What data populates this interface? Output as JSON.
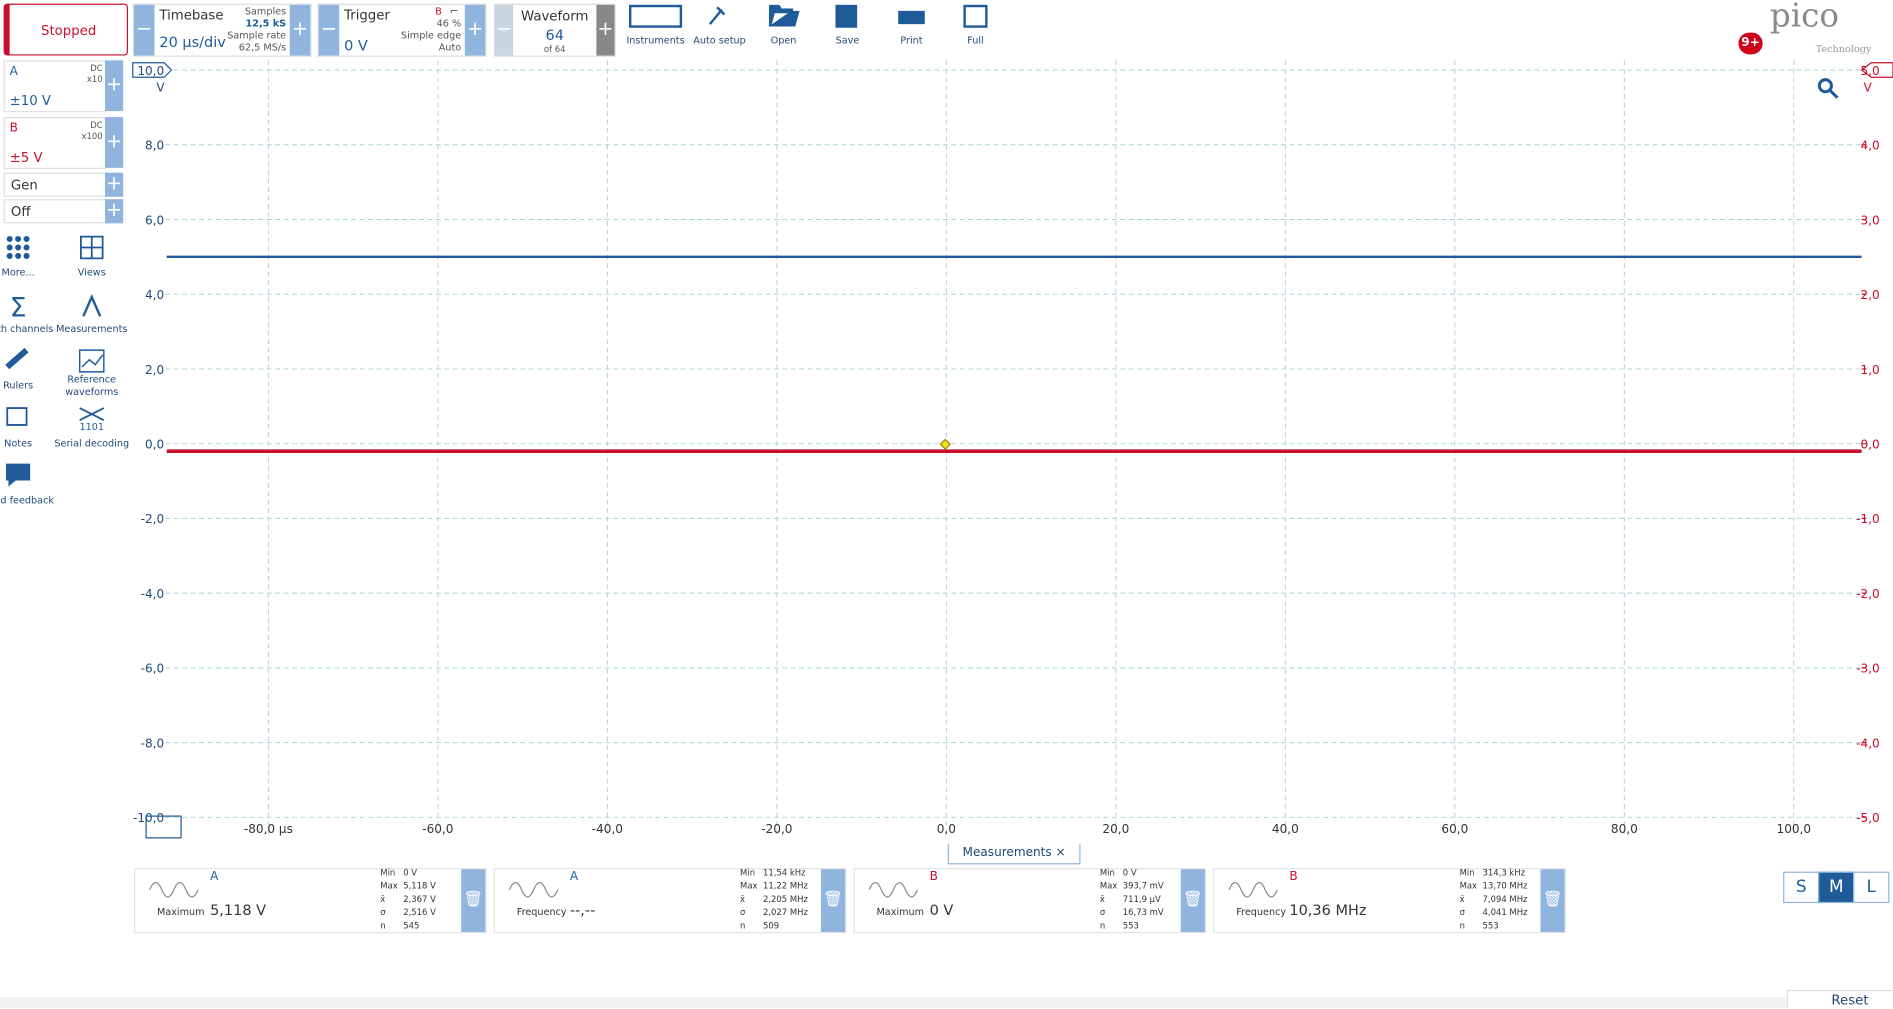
{
  "toolbar": {
    "run_state": "Stopped",
    "timebase": {
      "label": "Timebase",
      "value": "20 µs/div",
      "samples_label": "Samples",
      "samples": "12,5 kS",
      "sample_rate_label": "Sample rate",
      "sample_rate": "62,5 MS/s"
    },
    "trigger": {
      "label": "Trigger",
      "level": "0 V",
      "channel": "B",
      "percent": "46 %",
      "type": "Simple edge",
      "mode": "Auto"
    },
    "waveform": {
      "label": "Waveform",
      "value": "64",
      "of": "of 64"
    },
    "buttons": [
      "Instruments",
      "Auto setup",
      "Open",
      "Save",
      "Print",
      "Full"
    ],
    "notifications": "9+",
    "logo": "pico",
    "logo_sub": "Technology"
  },
  "channels": [
    {
      "name": "A",
      "coupling": "DC",
      "probe": "x10",
      "range": "±10 V"
    },
    {
      "name": "B",
      "coupling": "DC",
      "probe": "x100",
      "range": "±5 V"
    }
  ],
  "generator": {
    "name": "Gen",
    "state": "Off"
  },
  "tools": [
    "More...",
    "Views",
    "Math channels",
    "Measurements",
    "Rulers",
    "Reference waveforms",
    "Notes",
    "Serial decoding",
    "Send feedback"
  ],
  "chart_data": {
    "type": "line",
    "ylabel": "V",
    "y2label": "V",
    "xlim": [
      -96,
      108
    ],
    "ylim": [
      -10,
      10
    ],
    "y2lim": [
      -5,
      5
    ],
    "xticks": [
      {
        "value": -80,
        "label": "-80,0 µs"
      },
      {
        "value": -60,
        "label": "-60,0"
      },
      {
        "value": -40,
        "label": "-40,0"
      },
      {
        "value": -20,
        "label": "-20,0"
      },
      {
        "value": 0,
        "label": "0,0"
      },
      {
        "value": 20,
        "label": "20,0"
      },
      {
        "value": 40,
        "label": "40,0"
      },
      {
        "value": 60,
        "label": "60,0"
      },
      {
        "value": 80,
        "label": "80,0"
      },
      {
        "value": 100,
        "label": "100,0"
      }
    ],
    "yticks": [
      {
        "value": 10,
        "label": "10,0"
      },
      {
        "value": 8,
        "label": "8,0"
      },
      {
        "value": 6,
        "label": "6,0"
      },
      {
        "value": 4,
        "label": "4,0"
      },
      {
        "value": 2,
        "label": "2,0"
      },
      {
        "value": 0,
        "label": "0,0"
      },
      {
        "value": -2,
        "label": "-2,0"
      },
      {
        "value": -4,
        "label": "-4,0"
      },
      {
        "value": -6,
        "label": "-6,0"
      },
      {
        "value": -8,
        "label": "-8,0"
      },
      {
        "value": -10,
        "label": "-10,0"
      }
    ],
    "y2ticks": [
      {
        "value": 5,
        "label": "5,0"
      },
      {
        "value": 4,
        "label": "4,0"
      },
      {
        "value": 3,
        "label": "3,0"
      },
      {
        "value": 2,
        "label": "2,0"
      },
      {
        "value": 1,
        "label": "1,0"
      },
      {
        "value": 0,
        "label": "0,0"
      },
      {
        "value": -1,
        "label": "-1,0"
      },
      {
        "value": -2,
        "label": "-2,0"
      },
      {
        "value": -3,
        "label": "-3,0"
      },
      {
        "value": -4,
        "label": "-4,0"
      },
      {
        "value": -5,
        "label": "-5,0"
      }
    ],
    "grid": true,
    "x": [
      -92,
      108
    ],
    "series": [
      {
        "name": "A",
        "color": "#1f5b99",
        "values": [
          5.0,
          5.0
        ]
      },
      {
        "name": "B",
        "color": "#c8102e",
        "axis": "y2",
        "values": [
          -0.1,
          -0.1
        ]
      }
    ]
  },
  "measurements": {
    "title": "Measurements",
    "items": [
      {
        "channel": "A",
        "name": "Maximum",
        "value": "5,118 V",
        "stats": [
          [
            "Min",
            "0 V"
          ],
          [
            "Max",
            "5,118 V"
          ],
          [
            "x̄",
            "2,367 V"
          ],
          [
            "σ",
            "2,516 V"
          ],
          [
            "n",
            "545"
          ]
        ]
      },
      {
        "channel": "A",
        "name": "Frequency",
        "value": "--,--",
        "stats": [
          [
            "Min",
            "11,54 kHz"
          ],
          [
            "Max",
            "11,22 MHz"
          ],
          [
            "x̄",
            "2,205 MHz"
          ],
          [
            "σ",
            "2,027 MHz"
          ],
          [
            "n",
            "509"
          ]
        ]
      },
      {
        "channel": "B",
        "name": "Maximum",
        "value": "0 V",
        "stats": [
          [
            "Min",
            "0 V"
          ],
          [
            "Max",
            "393,7 mV"
          ],
          [
            "x̄",
            "711,9 µV"
          ],
          [
            "σ",
            "16,73 mV"
          ],
          [
            "n",
            "553"
          ]
        ]
      },
      {
        "channel": "B",
        "name": "Frequency",
        "value": "10,36 MHz",
        "stats": [
          [
            "Min",
            "314,3 kHz"
          ],
          [
            "Max",
            "13,70 MHz"
          ],
          [
            "x̄",
            "7,094 MHz"
          ],
          [
            "σ",
            "4,041 MHz"
          ],
          [
            "n",
            "553"
          ]
        ]
      }
    ]
  },
  "size_buttons": [
    "S",
    "M",
    "L"
  ],
  "reset": "Reset"
}
